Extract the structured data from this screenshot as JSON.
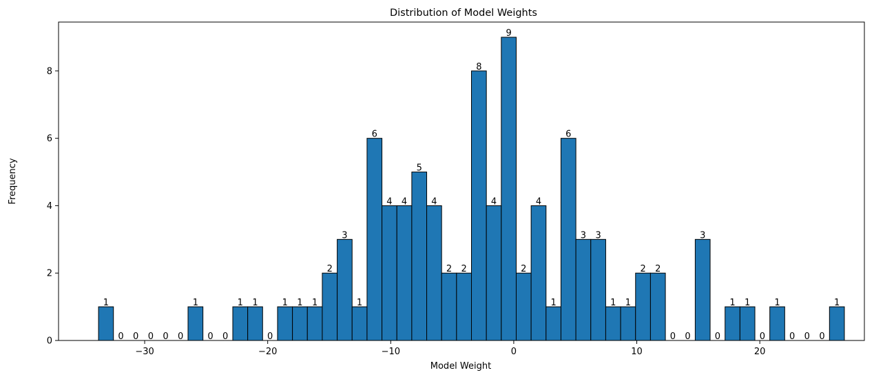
{
  "chart_data": {
    "type": "bar",
    "title": "Distribution of Model Weights",
    "xlabel": "Model Weight",
    "ylabel": "Frequency",
    "bin_start": -33.75,
    "bin_width": 1.2125,
    "counts": [
      1,
      0,
      0,
      0,
      0,
      0,
      1,
      0,
      0,
      1,
      1,
      0,
      1,
      1,
      1,
      2,
      3,
      1,
      6,
      4,
      4,
      5,
      4,
      2,
      2,
      8,
      4,
      9,
      2,
      4,
      1,
      6,
      3,
      3,
      1,
      1,
      2,
      2,
      0,
      0,
      3,
      0,
      1,
      1,
      0,
      1,
      0,
      0,
      0,
      1
    ],
    "xlim": [
      -37.0,
      28.5
    ],
    "ylim": [
      0,
      9.45
    ],
    "xticks": [
      -30,
      -20,
      -10,
      0,
      10,
      20
    ],
    "xtick_labels": [
      "−30",
      "−20",
      "−10",
      "0",
      "10",
      "20"
    ],
    "yticks": [
      0,
      2,
      4,
      6,
      8
    ],
    "ytick_labels": [
      "0",
      "2",
      "4",
      "6",
      "8"
    ],
    "bar_color": "#1f77b4",
    "edge_color": "#000000",
    "grid": false,
    "legend": "none"
  }
}
